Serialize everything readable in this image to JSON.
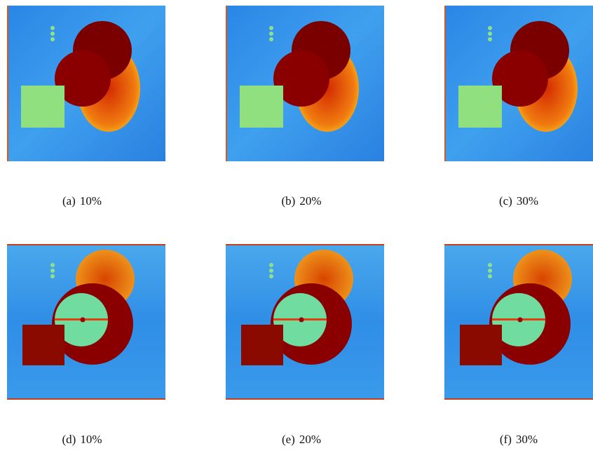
{
  "panels": [
    {
      "label": "(a)",
      "caption": "10%"
    },
    {
      "label": "(b)",
      "caption": "20%"
    },
    {
      "label": "(c)",
      "caption": "30%"
    },
    {
      "label": "(d)",
      "caption": "10%"
    },
    {
      "label": "(e)",
      "caption": "20%"
    },
    {
      "label": "(f)",
      "caption": "30%"
    }
  ]
}
